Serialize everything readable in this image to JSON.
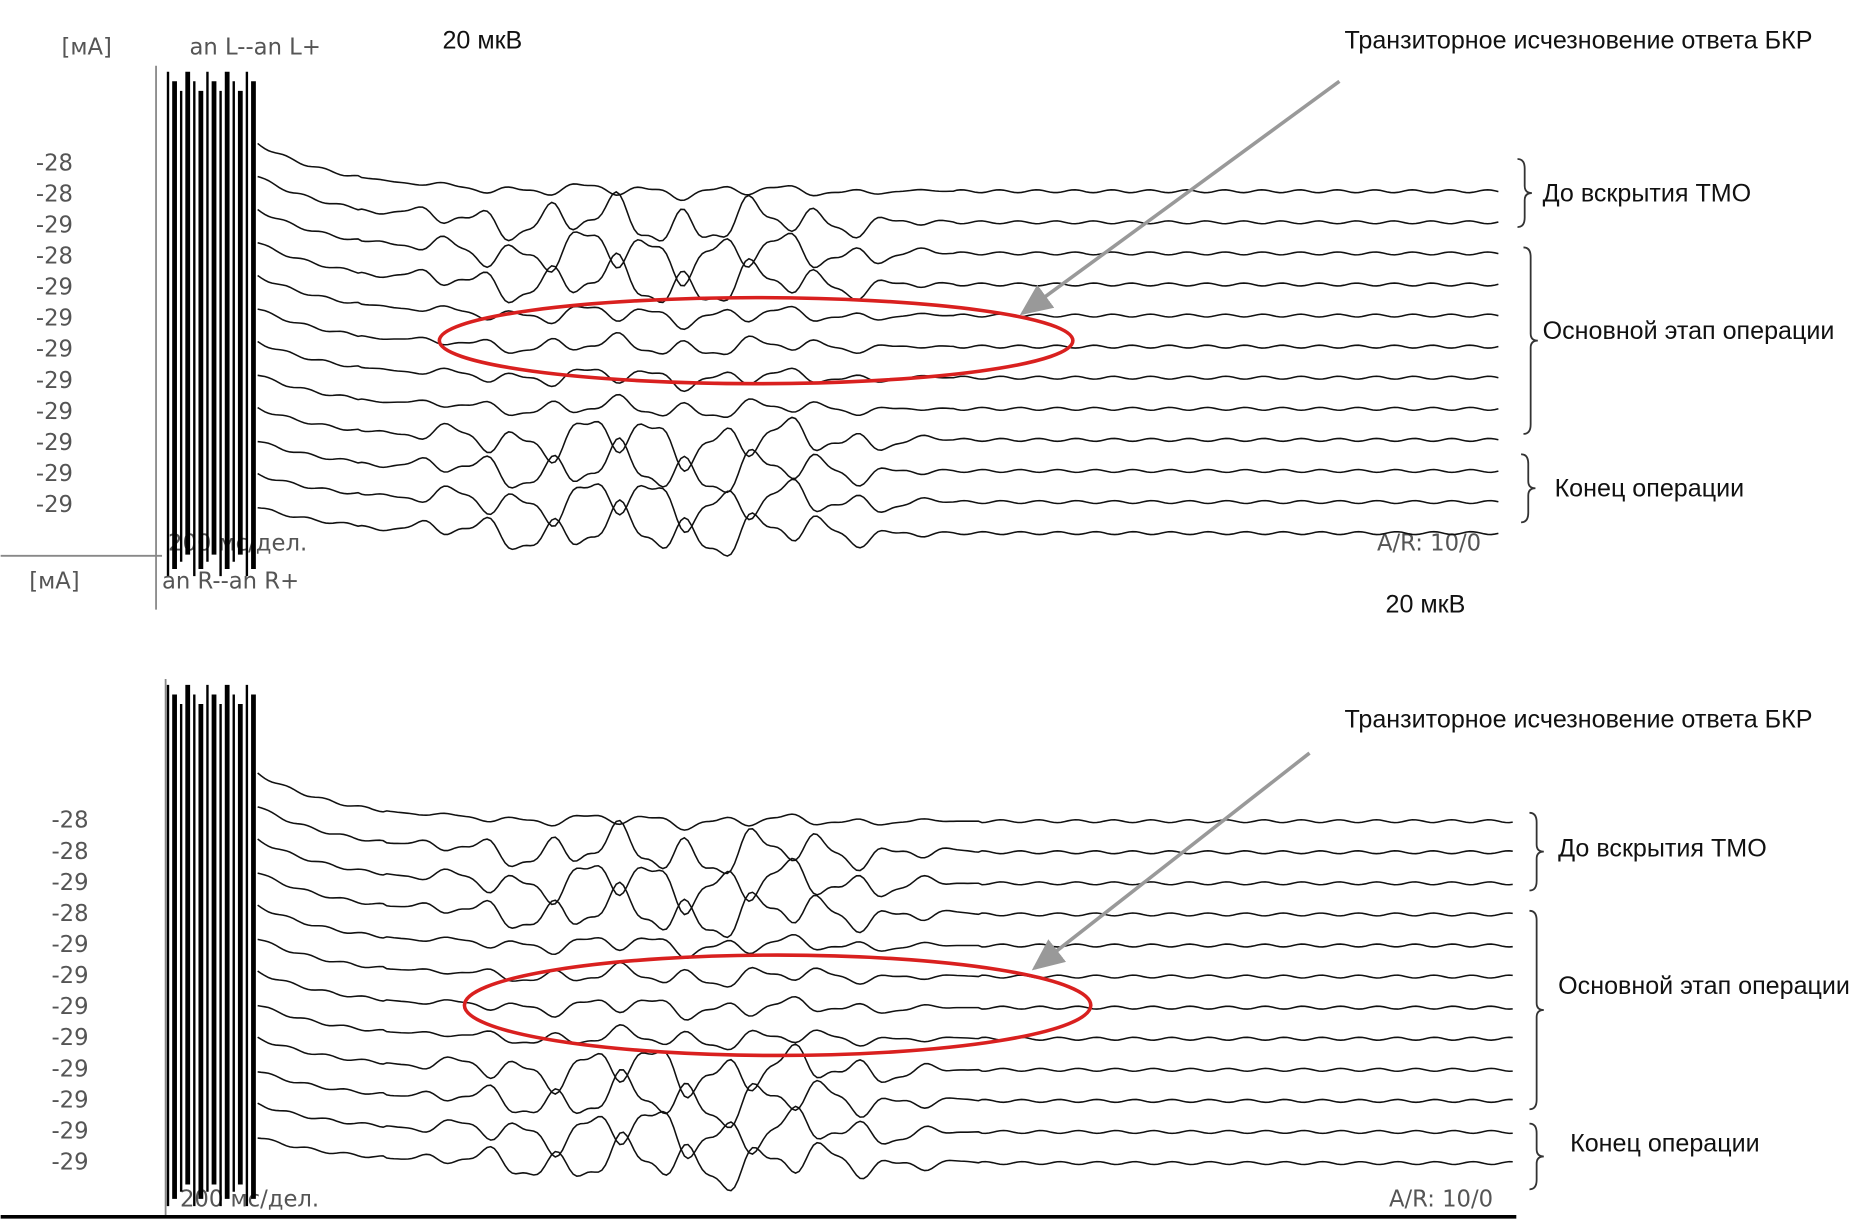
{
  "panels": [
    {
      "unit": "[мА]",
      "channel": "an L--an L+",
      "scale_label": "20 мкВ",
      "row_labels": [
        "-28",
        "-28",
        "-29",
        "-28",
        "-29",
        "-29",
        "-29",
        "-29",
        "-29",
        "-29",
        "-29",
        "-29"
      ],
      "time_label": "200 мс/дел.",
      "ar_label": "A/R: 10/0",
      "annotation": "Транзиторное исчезновение ответа БКР",
      "groups": [
        "До вскрытия ТМО",
        "Основной этап операции",
        "Конец операции"
      ]
    },
    {
      "unit": "[мА]",
      "channel": "an R--an R+",
      "scale_label": "20 мкВ",
      "row_labels": [
        "-28",
        "-28",
        "-29",
        "-28",
        "-29",
        "-29",
        "-29",
        "-29",
        "-29",
        "-29",
        "-29",
        "-29"
      ],
      "time_label": "200 мс/дел.",
      "ar_label": "A/R: 10/0",
      "annotation": "Транзиторное исчезновение ответа БКР",
      "groups": [
        "До вскрытия ТМО",
        "Основной этап операции",
        "Конец операции"
      ]
    }
  ]
}
